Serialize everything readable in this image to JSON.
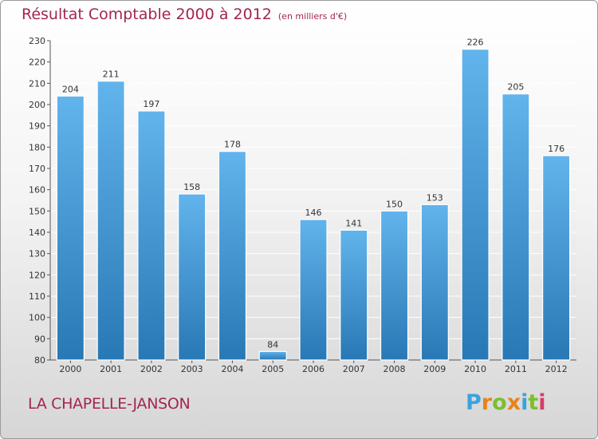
{
  "header": {
    "title": "Résultat Comptable 2000 à 2012",
    "subtitle": "(en milliers d'€)"
  },
  "footer": {
    "commune": "LA CHAPELLE-JANSON",
    "logo": {
      "letters": [
        "P",
        "r",
        "o",
        "x",
        "i",
        "t",
        "i"
      ],
      "colors": [
        "#3aa3dd",
        "#e8831a",
        "#7cbf2e",
        "#e8831a",
        "#3aa3dd",
        "#7cbf2e",
        "#d93a6a"
      ]
    }
  },
  "colors": {
    "bar_light": "#62b4ec",
    "bar_dark": "#2878b5",
    "title": "#a3264f",
    "grid": "#ffffff",
    "text": "#333333"
  },
  "chart_data": {
    "type": "bar",
    "categories": [
      "2000",
      "2001",
      "2002",
      "2003",
      "2004",
      "2005",
      "2006",
      "2007",
      "2008",
      "2009",
      "2010",
      "2011",
      "2012"
    ],
    "values": [
      204,
      211,
      197,
      158,
      178,
      84,
      146,
      141,
      150,
      153,
      226,
      205,
      176
    ],
    "ylim": [
      80,
      230
    ],
    "yticks": [
      80,
      90,
      100,
      110,
      120,
      130,
      140,
      150,
      160,
      170,
      180,
      190,
      200,
      210,
      220,
      230
    ],
    "grid": true,
    "data_labels": true
  }
}
